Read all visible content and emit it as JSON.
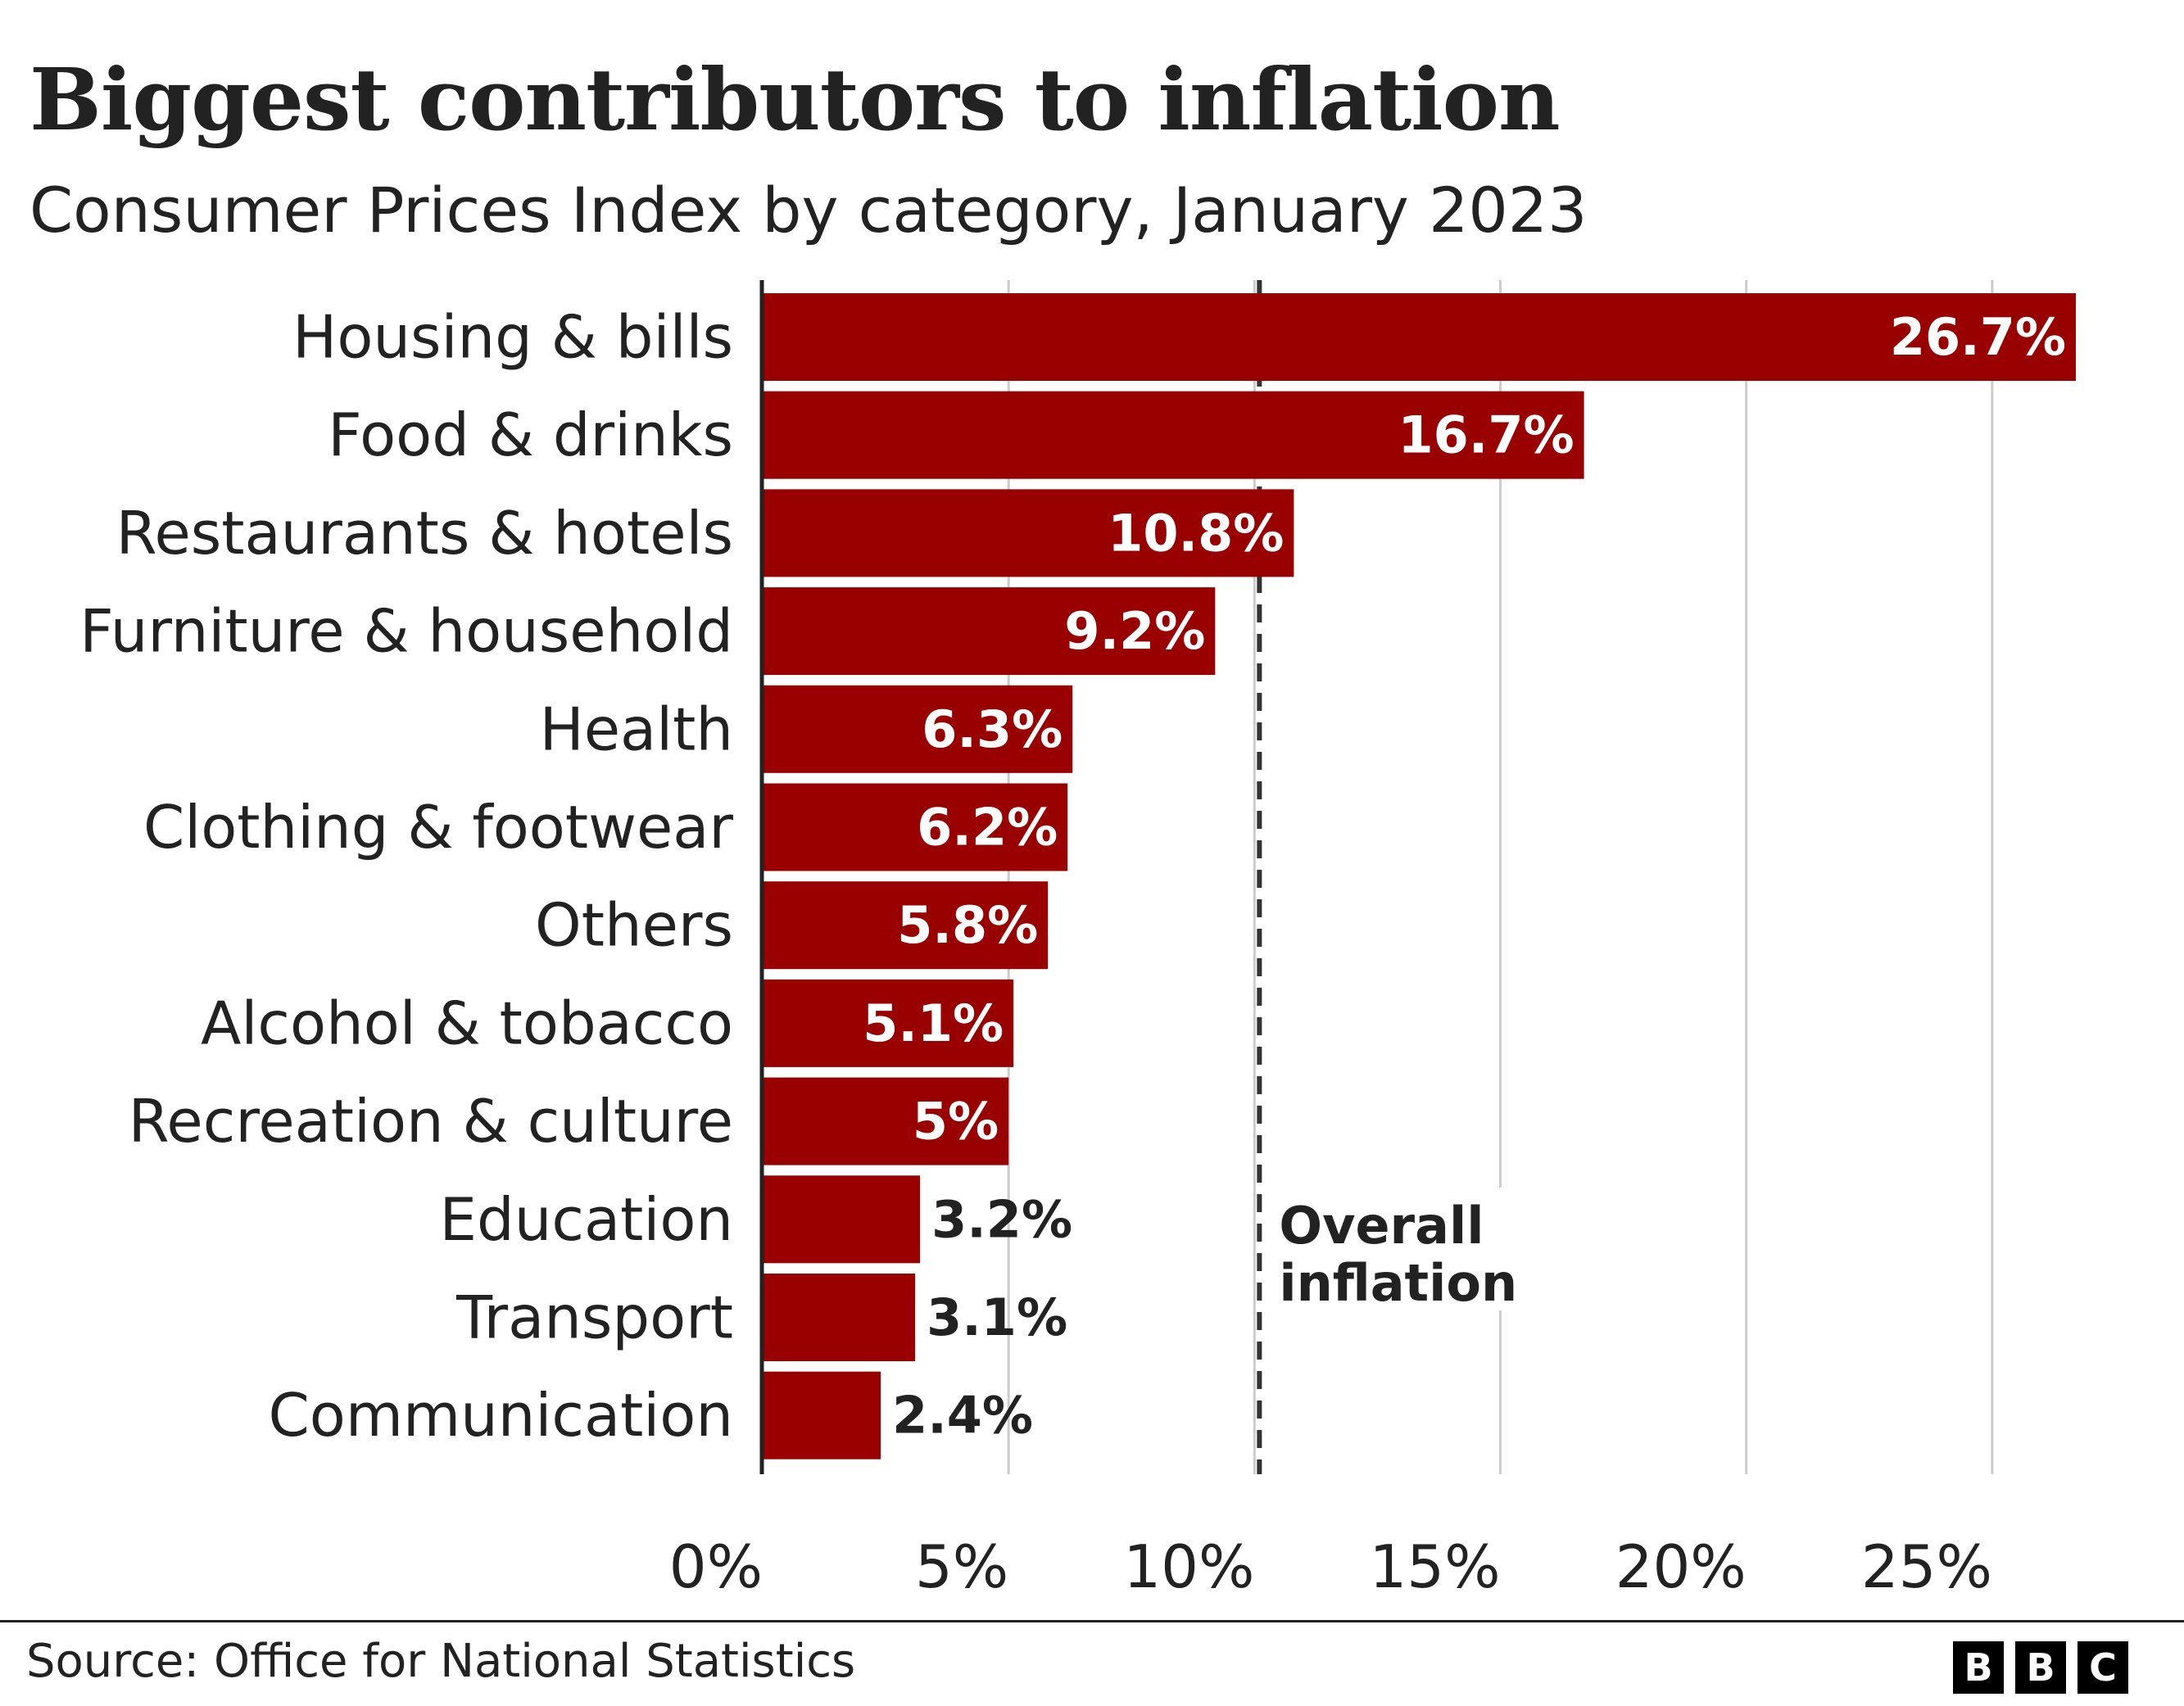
{
  "title": "Biggest contributors to inflation",
  "subtitle": "Consumer Prices Index by category, January 2023",
  "source": "Source: Office for National Statistics",
  "logo": [
    "B",
    "B",
    "C"
  ],
  "colors": {
    "bar": "#990000",
    "text": "#222222",
    "grid": "#cccccc",
    "reference": "#333333"
  },
  "chart_data": {
    "type": "bar",
    "orientation": "horizontal",
    "categories": [
      "Housing & bills",
      "Food & drinks",
      "Restaurants & hotels",
      "Furniture & household",
      "Health",
      "Clothing & footwear",
      "Others",
      "Alcohol & tobacco",
      "Recreation & culture",
      "Education",
      "Transport",
      "Communication"
    ],
    "values": [
      26.7,
      16.7,
      10.8,
      9.2,
      6.3,
      6.2,
      5.8,
      5.1,
      5.0,
      3.2,
      3.1,
      2.4
    ],
    "value_labels": [
      "26.7%",
      "16.7%",
      "10.8%",
      "9.2%",
      "6.3%",
      "6.2%",
      "5.8%",
      "5.1%",
      "5%",
      "3.2%",
      "3.1%",
      "2.4%"
    ],
    "xlim": [
      0,
      27.8
    ],
    "xticks": [
      0,
      5,
      10,
      15,
      20,
      25
    ],
    "xtick_labels": [
      "0%",
      "5%",
      "10%",
      "15%",
      "20%",
      "25%"
    ],
    "grid": true,
    "reference_line": {
      "value": 10.1,
      "label_lines": [
        "Overall",
        "inflation"
      ]
    }
  }
}
